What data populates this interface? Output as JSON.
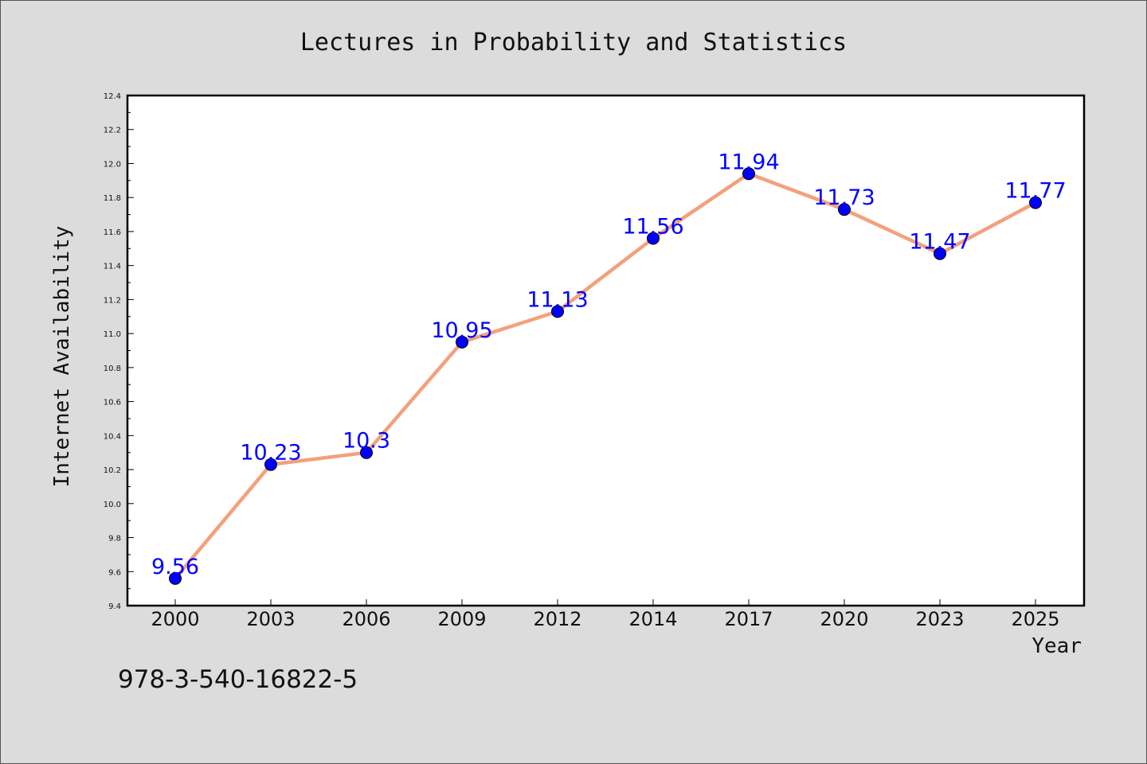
{
  "chart_data": {
    "type": "line",
    "title": "Lectures in Probability and Statistics",
    "xlabel": "Year",
    "ylabel": "Internet Availability",
    "categories": [
      "2000",
      "2003",
      "2006",
      "2009",
      "2012",
      "2014",
      "2017",
      "2020",
      "2023",
      "2025"
    ],
    "values": [
      9.56,
      10.23,
      10.3,
      10.95,
      11.13,
      11.56,
      11.94,
      11.73,
      11.47,
      11.77
    ],
    "data_labels": [
      "9.56",
      "10.23",
      "10.3",
      "10.95",
      "11.13",
      "11.56",
      "11.94",
      "11.73",
      "11.47",
      "11.77"
    ],
    "ylim": [
      9.4,
      12.4
    ],
    "yticks": [
      "9.4",
      "9.6",
      "9.8",
      "10.0",
      "10.2",
      "10.4",
      "10.6",
      "10.8",
      "11.0",
      "11.2",
      "11.4",
      "11.6",
      "11.8",
      "12.0",
      "12.2",
      "12.4"
    ],
    "grid": false,
    "line_color": "#f4a07c",
    "marker_color": "#0000ff",
    "label_color": "#0000ff",
    "plot_background": "#ffffff",
    "figure_background": "#dcdcdc"
  },
  "footer": {
    "isbn": "978-3-540-16822-5"
  }
}
